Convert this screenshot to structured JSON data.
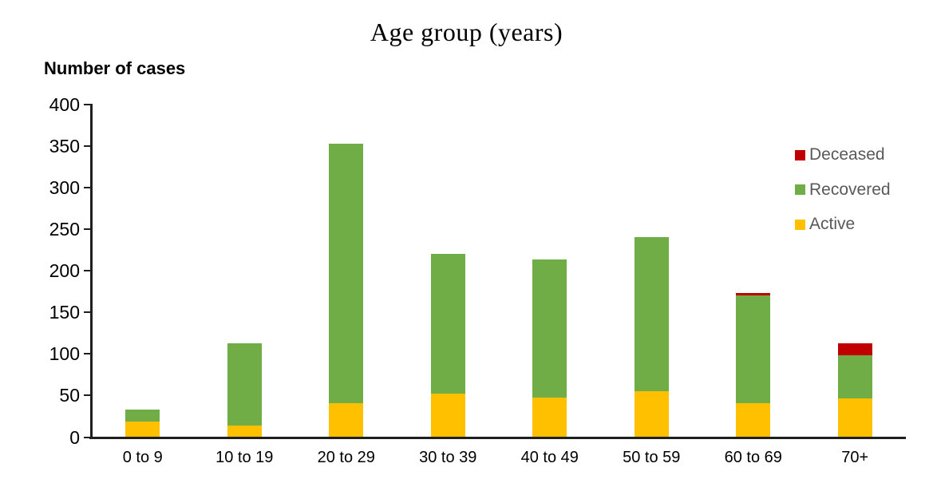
{
  "chart_data": {
    "type": "bar",
    "stacked": true,
    "title": "Age group (years)",
    "ylabel": "Number of cases",
    "xlabel": "",
    "categories": [
      "0 to 9",
      "10 to 19",
      "20 to 29",
      "30 to 39",
      "40 to 49",
      "50 to 59",
      "60 to 69",
      "70+"
    ],
    "series": [
      {
        "name": "Active",
        "color": "#FFC000",
        "values": [
          19,
          14,
          41,
          52,
          48,
          55,
          41,
          47
        ]
      },
      {
        "name": "Recovered",
        "color": "#70AD47",
        "values": [
          14,
          99,
          312,
          168,
          166,
          186,
          129,
          51
        ]
      },
      {
        "name": "Deceased",
        "color": "#C00000",
        "values": [
          0,
          0,
          0,
          0,
          0,
          0,
          3,
          15
        ]
      }
    ],
    "totals": [
      33,
      113,
      353,
      220,
      214,
      241,
      173,
      113
    ],
    "y_ticks": [
      0,
      50,
      100,
      150,
      200,
      250,
      300,
      350,
      400
    ],
    "ylim": [
      0,
      400
    ],
    "grid": false,
    "legend_position": "right",
    "legend_order": [
      "Deceased",
      "Recovered",
      "Active"
    ],
    "colors": {
      "axis": "#1f1f1f",
      "legend_text": "#595959",
      "title_text": "#000000"
    }
  }
}
